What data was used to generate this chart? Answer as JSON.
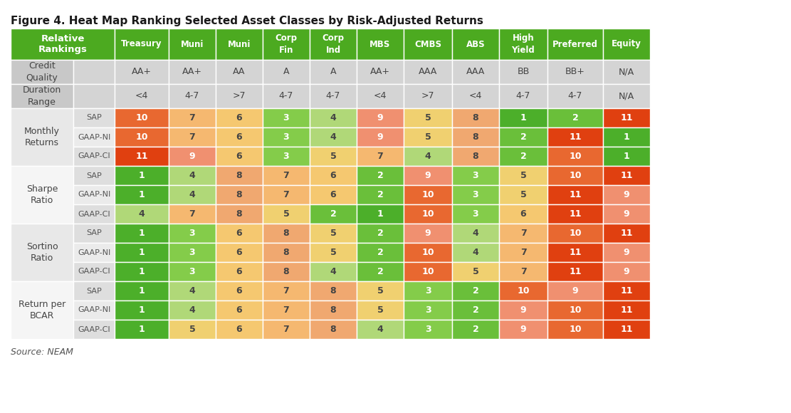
{
  "title": "Figure 4. Heat Map Ranking Selected Asset Classes by Risk-Adjusted Returns",
  "source": "Source: NEAM",
  "header_bg": "#4caa20",
  "header_text_color": "#ffffff",
  "col_headers": [
    "",
    "",
    "Treasury",
    "Muni",
    "Muni",
    "Corp\nFin",
    "Corp\nInd",
    "MBS",
    "CMBS",
    "ABS",
    "High\nYield",
    "Preferred",
    "Equity"
  ],
  "credit_quality": [
    "",
    "",
    "AA+",
    "AA+",
    "AA",
    "A",
    "A",
    "AA+",
    "AAA",
    "AAA",
    "BB",
    "BB+",
    "N/A"
  ],
  "duration_range": [
    "",
    "",
    "<4",
    "4-7",
    ">7",
    "4-7",
    "4-7",
    "<4",
    ">7",
    "<4",
    "4-7",
    "4-7",
    "N/A"
  ],
  "data_rows": [
    [
      "Monthly\nReturns",
      "SAP",
      10,
      7,
      6,
      3,
      4,
      9,
      5,
      8,
      1,
      2,
      11
    ],
    [
      "",
      "GAAP-NI",
      10,
      7,
      6,
      3,
      4,
      9,
      5,
      8,
      2,
      11,
      1
    ],
    [
      "",
      "GAAP-CI",
      11,
      9,
      6,
      3,
      5,
      7,
      4,
      8,
      2,
      10,
      1
    ],
    [
      "Sharpe\nRatio",
      "SAP",
      1,
      4,
      8,
      7,
      6,
      2,
      9,
      3,
      5,
      10,
      11
    ],
    [
      "",
      "GAAP-NI",
      1,
      4,
      8,
      7,
      6,
      2,
      10,
      3,
      5,
      11,
      9
    ],
    [
      "",
      "GAAP-CI",
      4,
      7,
      8,
      5,
      2,
      1,
      10,
      3,
      6,
      11,
      9
    ],
    [
      "Sortino\nRatio",
      "SAP",
      1,
      3,
      6,
      8,
      5,
      2,
      9,
      4,
      7,
      10,
      11
    ],
    [
      "",
      "GAAP-NI",
      1,
      3,
      6,
      8,
      5,
      2,
      10,
      4,
      7,
      11,
      9
    ],
    [
      "",
      "GAAP-CI",
      1,
      3,
      6,
      8,
      4,
      2,
      10,
      5,
      7,
      11,
      9
    ],
    [
      "Return per\nBCAR",
      "SAP",
      1,
      4,
      6,
      7,
      8,
      5,
      3,
      2,
      10,
      9,
      11
    ],
    [
      "",
      "GAAP-NI",
      1,
      4,
      6,
      7,
      8,
      5,
      3,
      2,
      9,
      10,
      11
    ],
    [
      "",
      "GAAP-CI",
      1,
      5,
      6,
      7,
      8,
      4,
      3,
      2,
      9,
      10,
      11
    ]
  ],
  "color_scale": {
    "1": "#4caf2a",
    "2": "#6abf3a",
    "3": "#84cc4a",
    "4": "#b0d878",
    "5": "#f0d070",
    "6": "#f5c870",
    "7": "#f5b870",
    "8": "#f0a870",
    "9": "#f09070",
    "10": "#e86830",
    "11": "#e04010"
  },
  "group_labels": [
    "Monthly\nReturns",
    "Sharpe\nRatio",
    "Sortino\nRatio",
    "Return per\nBCAR"
  ],
  "group_bg_colors": [
    "#e8e8e8",
    "#f5f5f5",
    "#e8e8e8",
    "#f5f5f5"
  ],
  "subrow_bg_colors": [
    "#e0e0e0",
    "#f0f0f0"
  ]
}
